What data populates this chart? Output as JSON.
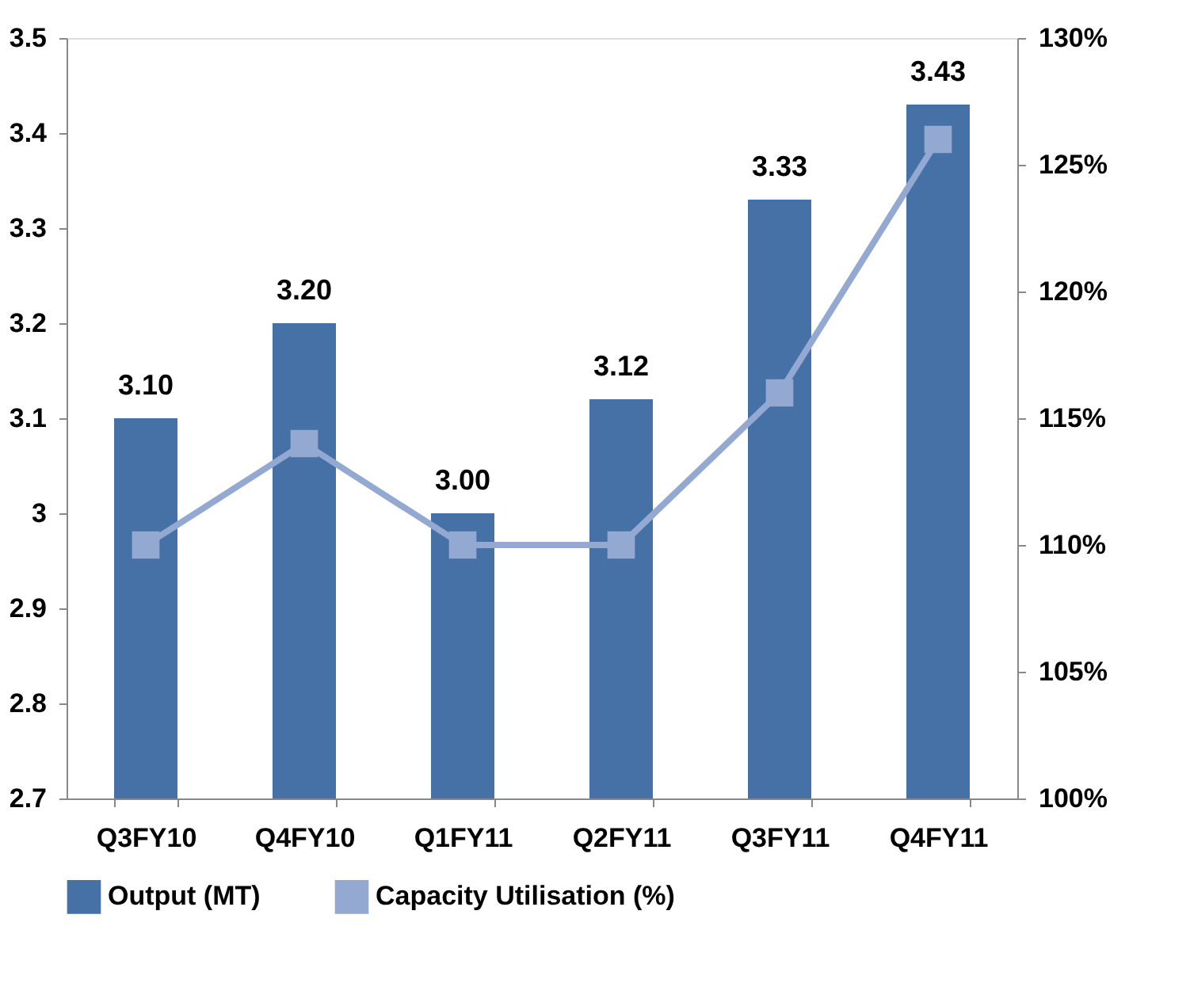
{
  "chart_data": {
    "type": "bar",
    "categories": [
      "Q3FY10",
      "Q4FY10",
      "Q1FY11",
      "Q2FY11",
      "Q3FY11",
      "Q4FY11"
    ],
    "series": [
      {
        "name": "Output (MT)",
        "color": "#4571a6",
        "values": [
          3.1,
          3.2,
          3.0,
          3.12,
          3.33,
          3.43
        ],
        "value_labels": [
          "3.10",
          "3.20",
          "3.00",
          "3.12",
          "3.33",
          "3.43"
        ]
      },
      {
        "name": "Capacity Utilisation (%)",
        "type": "line",
        "axis": "y2",
        "color": "#93a9d1",
        "values": [
          110,
          114,
          110,
          110,
          116,
          126
        ],
        "marker": "square"
      }
    ],
    "ylim": [
      2.7,
      3.5
    ],
    "yticks": [
      2.7,
      2.8,
      2.9,
      3,
      3.1,
      3.2,
      3.3,
      3.4,
      3.5
    ],
    "y2lim": [
      100,
      130
    ],
    "y2ticks": [
      {
        "value": 100,
        "label": "100%"
      },
      {
        "value": 105,
        "label": "105%"
      },
      {
        "value": 110,
        "label": "110%"
      },
      {
        "value": 115,
        "label": "115%"
      },
      {
        "value": 120,
        "label": "120%"
      },
      {
        "value": 125,
        "label": "125%"
      },
      {
        "value": 130,
        "label": "130%"
      }
    ],
    "grid": false,
    "legend": "bottom"
  }
}
